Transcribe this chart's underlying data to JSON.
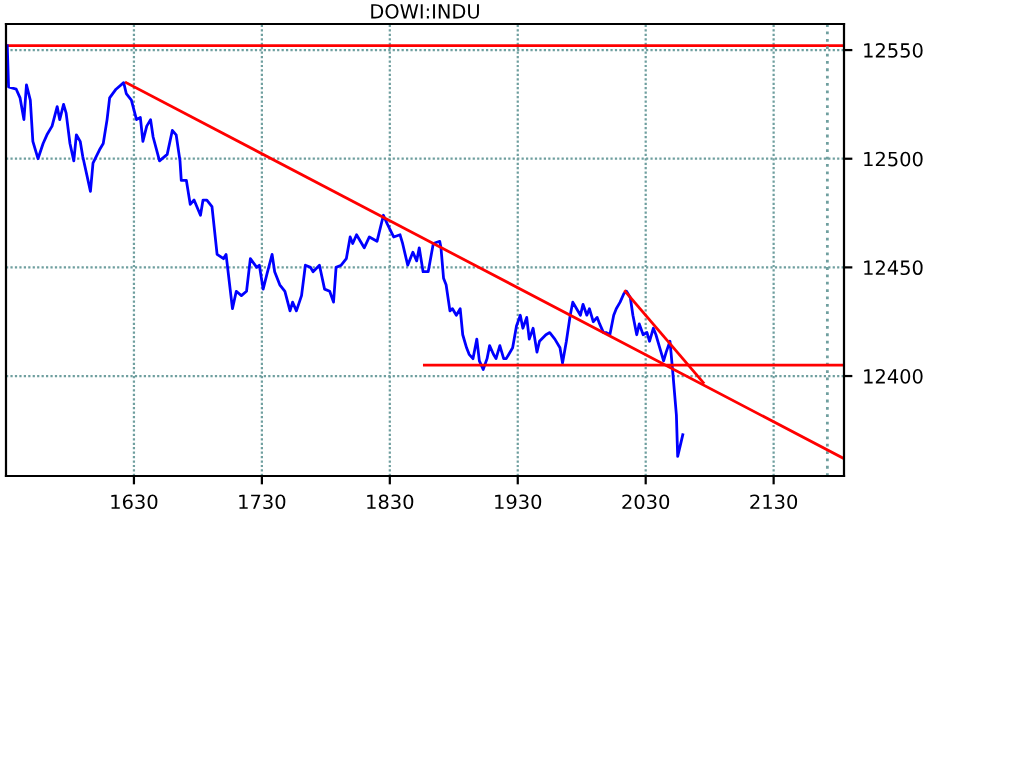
{
  "chart_data": {
    "type": "line",
    "title": "DOWI:INDU",
    "xlim": [
      1530,
      2185
    ],
    "ylim": [
      12354,
      12562
    ],
    "xticks": [
      1630,
      1730,
      1830,
      1930,
      2030,
      2130
    ],
    "yticks": [
      12400,
      12450,
      12500,
      12550
    ],
    "grid": true,
    "legend": false,
    "line_style": "solid",
    "marker": "none",
    "ref_lines": [
      {
        "axis": "y",
        "value": 12552,
        "color": "#ff0000",
        "line_style": "solid"
      },
      {
        "axis": "x",
        "value": 2172,
        "color": "#6f9f9f",
        "line_style": "dotted"
      }
    ],
    "series": [
      {
        "color": "#0000ff",
        "x": [
          1531,
          1532,
          1538,
          1541,
          1544,
          1546,
          1549,
          1551,
          1555,
          1559,
          1562,
          1566,
          1570,
          1572,
          1575,
          1577,
          1580,
          1583,
          1585,
          1588,
          1590,
          1596,
          1598,
          1603,
          1606,
          1609,
          1611,
          1616,
          1622,
          1624,
          1628,
          1632,
          1635,
          1637,
          1640,
          1643,
          1645,
          1650,
          1656,
          1660,
          1663,
          1666,
          1667,
          1671,
          1674,
          1677,
          1682,
          1684,
          1687,
          1691,
          1695,
          1700,
          1702,
          1707,
          1710,
          1714,
          1718,
          1721,
          1726,
          1728,
          1731,
          1734,
          1738,
          1740,
          1744,
          1748,
          1752,
          1754,
          1757,
          1761,
          1764,
          1768,
          1770,
          1775,
          1779,
          1783,
          1786,
          1788,
          1792,
          1796,
          1799,
          1801,
          1804,
          1807,
          1810,
          1814,
          1820,
          1825,
          1828,
          1833,
          1838,
          1840,
          1844,
          1848,
          1851,
          1853,
          1856,
          1860,
          1864,
          1869,
          1870,
          1872,
          1874,
          1877,
          1879,
          1882,
          1885,
          1887,
          1890,
          1892,
          1895,
          1898,
          1900,
          1903,
          1906,
          1908,
          1911,
          1913,
          1916,
          1919,
          1921,
          1926,
          1929,
          1932,
          1934,
          1937,
          1939,
          1942,
          1945,
          1947,
          1952,
          1955,
          1959,
          1963,
          1965,
          1968,
          1971,
          1973,
          1976,
          1979,
          1981,
          1984,
          1986,
          1989,
          1992,
          1994,
          1997,
          1999,
          2002,
          2005,
          2007,
          2010,
          2013,
          2015,
          2018,
          2020,
          2023,
          2025,
          2028,
          2031,
          2033,
          2036,
          2038,
          2041,
          2044,
          2046,
          2049,
          2051,
          2054,
          2055,
          2057,
          2059
        ],
        "values": [
          12552,
          12533,
          12532,
          12528,
          12518,
          12534,
          12527,
          12508,
          12500,
          12507,
          12511,
          12515,
          12524,
          12518,
          12525,
          12521,
          12507,
          12499,
          12511,
          12508,
          12501,
          12485,
          12498,
          12504,
          12507,
          12518,
          12528,
          12532,
          12535,
          12530,
          12527,
          12518,
          12519,
          12508,
          12515,
          12518,
          12510,
          12499,
          12502,
          12513,
          12511,
          12499,
          12490,
          12490,
          12479,
          12481,
          12474,
          12481,
          12481,
          12478,
          12456,
          12454,
          12456,
          12431,
          12439,
          12437,
          12439,
          12454,
          12450,
          12451,
          12440,
          12447,
          12456,
          12448,
          12442,
          12439,
          12430,
          12434,
          12430,
          12437,
          12451,
          12450,
          12448,
          12451,
          12440,
          12439,
          12434,
          12450,
          12451,
          12454,
          12464,
          12461,
          12465,
          12462,
          12459,
          12464,
          12462,
          12474,
          12470,
          12464,
          12465,
          12461,
          12451,
          12457,
          12453,
          12459,
          12448,
          12448,
          12461,
          12462,
          12459,
          12445,
          12442,
          12430,
          12431,
          12428,
          12431,
          12419,
          12413,
          12410,
          12408,
          12417,
          12407,
          12403,
          12408,
          12414,
          12410,
          12408,
          12414,
          12408,
          12408,
          12413,
          12423,
          12428,
          12422,
          12427,
          12417,
          12422,
          12411,
          12416,
          12419,
          12420,
          12417,
          12413,
          12406,
          12416,
          12428,
          12434,
          12431,
          12428,
          12433,
          12428,
          12431,
          12425,
          12427,
          12424,
          12420,
          12420,
          12419,
          12428,
          12431,
          12434,
          12438,
          12439,
          12436,
          12428,
          12419,
          12424,
          12419,
          12420,
          12416,
          12422,
          12419,
          12413,
          12407,
          12411,
          12416,
          12403,
          12382,
          12363,
          12368,
          12373
        ]
      },
      {
        "color": "#ff0000",
        "x": [
          1624,
          2185
        ],
        "values": [
          12535,
          12362
        ]
      },
      {
        "color": "#ff0000",
        "x": [
          2014,
          2075
        ],
        "values": [
          12439,
          12397
        ]
      },
      {
        "color": "#ff0000",
        "x": [
          1857,
          2185
        ],
        "values": [
          12405,
          12405
        ]
      }
    ]
  }
}
